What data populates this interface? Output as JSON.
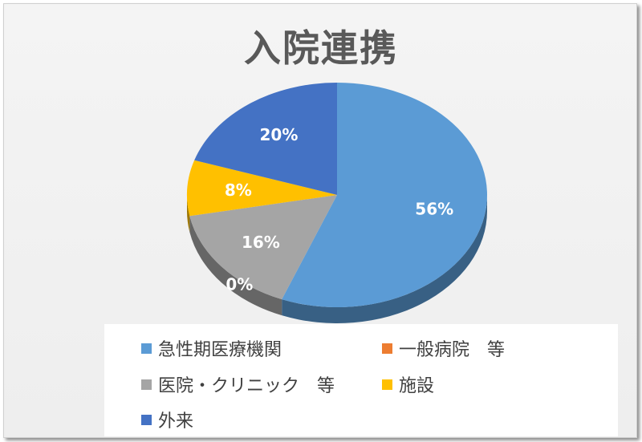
{
  "chart_data": {
    "type": "pie",
    "title": "入院連携",
    "slices": [
      {
        "name": "急性期医療機関",
        "value": 56,
        "label": "56%",
        "color": "#5b9bd5"
      },
      {
        "name": "一般病院　等",
        "value": 0,
        "label": "0%",
        "color": "#ed7d31"
      },
      {
        "name": "医院・クリニック　等",
        "value": 16,
        "label": "16%",
        "color": "#a5a5a5"
      },
      {
        "name": "施設",
        "value": 8,
        "label": "8%",
        "color": "#ffc000"
      },
      {
        "name": "外来",
        "value": 20,
        "label": "20%",
        "color": "#4472c4"
      }
    ],
    "legend_position": "bottom",
    "style": "3d"
  }
}
